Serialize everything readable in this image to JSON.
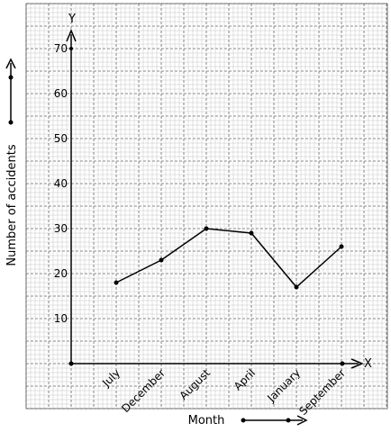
{
  "chart_data": {
    "type": "line",
    "categories": [
      "July",
      "December",
      "August",
      "April",
      "January",
      "September"
    ],
    "values": [
      18,
      23,
      30,
      29,
      17,
      26
    ],
    "xlabel": "Month",
    "ylabel": "Number of accidents",
    "x_axis_letter": "X",
    "y_axis_letter": "Y",
    "yticks": [
      10,
      20,
      30,
      40,
      50,
      60,
      70
    ],
    "ylim": [
      0,
      70
    ],
    "grid": true
  }
}
